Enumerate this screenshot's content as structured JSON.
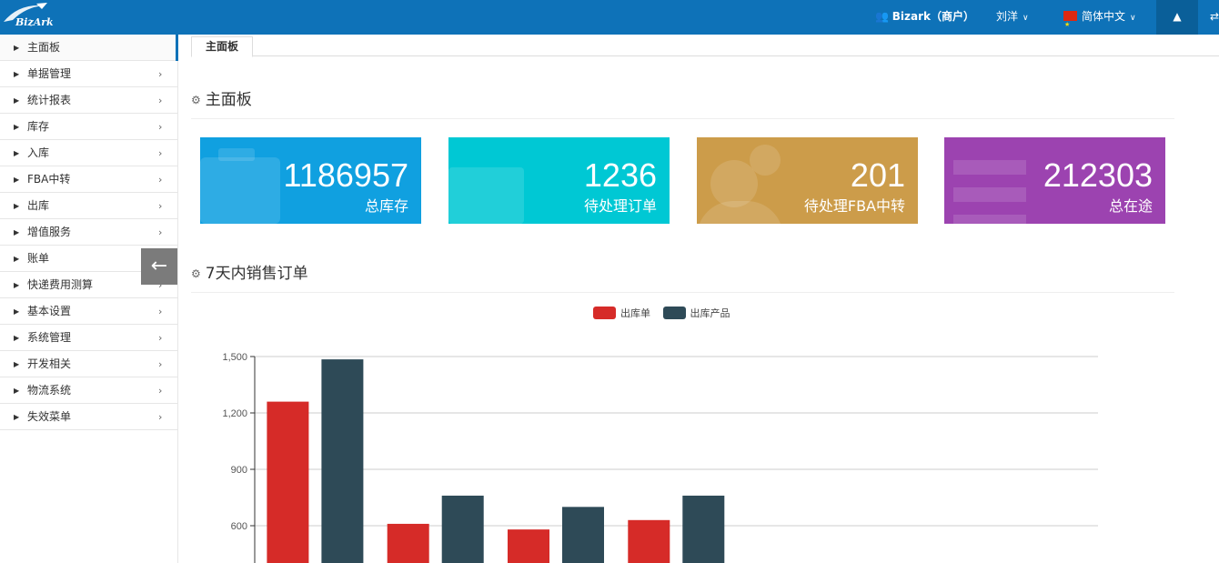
{
  "brand": {
    "logo_text": "BizArk"
  },
  "header": {
    "user_label": "Bizark（商户）",
    "user_name": "刘洋",
    "language": "简体中文"
  },
  "sidebar": {
    "items": [
      {
        "label": "主面板"
      },
      {
        "label": "单据管理"
      },
      {
        "label": "统计报表"
      },
      {
        "label": "库存"
      },
      {
        "label": "入库"
      },
      {
        "label": "FBA中转"
      },
      {
        "label": "出库"
      },
      {
        "label": "增值服务"
      },
      {
        "label": "账单"
      },
      {
        "label": "快递费用测算"
      },
      {
        "label": "基本设置"
      },
      {
        "label": "系统管理"
      },
      {
        "label": "开发相关"
      },
      {
        "label": "物流系统"
      },
      {
        "label": "失效菜单"
      }
    ]
  },
  "tabs": [
    {
      "label": "主面板"
    }
  ],
  "dashboard": {
    "title": "主面板",
    "stats": [
      {
        "value": "1186957",
        "label": "总库存",
        "color": "#10a0e0"
      },
      {
        "value": "1236",
        "label": "待处理订单",
        "color": "#00c8d4"
      },
      {
        "value": "201",
        "label": "待处理FBA中转",
        "color": "#cc9c4a"
      },
      {
        "value": "212303",
        "label": "总在途",
        "color": "#9c43b0"
      }
    ]
  },
  "sales": {
    "title": "7天内销售订单"
  },
  "chart_data": {
    "type": "bar",
    "title": "7天内销售订单",
    "legend_position": "top-center",
    "series": [
      {
        "name": "出库单",
        "color": "#d62b28",
        "values": [
          null,
          null,
          1260,
          610,
          580,
          630,
          null
        ]
      },
      {
        "name": "出库产品",
        "color": "#2e4a57",
        "values": [
          null,
          null,
          1485,
          760,
          700,
          760,
          null
        ]
      }
    ],
    "y_ticks": [
      "1,500",
      "1,200",
      "900",
      "600"
    ],
    "y_tick_values": [
      1500,
      1200,
      900,
      600
    ],
    "ylim_top": 1500,
    "grid": true
  }
}
